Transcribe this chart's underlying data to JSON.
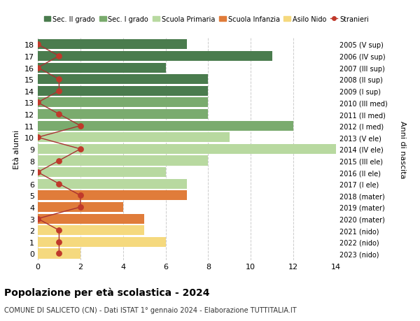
{
  "ages": [
    18,
    17,
    16,
    15,
    14,
    13,
    12,
    11,
    10,
    9,
    8,
    7,
    6,
    5,
    4,
    3,
    2,
    1,
    0
  ],
  "anni_nascita": [
    "2005 (V sup)",
    "2006 (IV sup)",
    "2007 (III sup)",
    "2008 (II sup)",
    "2009 (I sup)",
    "2010 (III med)",
    "2011 (II med)",
    "2012 (I med)",
    "2013 (V ele)",
    "2014 (IV ele)",
    "2015 (III ele)",
    "2016 (II ele)",
    "2017 (I ele)",
    "2018 (mater)",
    "2019 (mater)",
    "2020 (mater)",
    "2021 (nido)",
    "2022 (nido)",
    "2023 (nido)"
  ],
  "bar_values": [
    7,
    11,
    6,
    8,
    8,
    8,
    8,
    12,
    9,
    14,
    8,
    6,
    7,
    7,
    4,
    5,
    5,
    6,
    2
  ],
  "bar_colors": [
    "#4a7c4e",
    "#4a7c4e",
    "#4a7c4e",
    "#4a7c4e",
    "#4a7c4e",
    "#7aab6e",
    "#7aab6e",
    "#7aab6e",
    "#b8d9a0",
    "#b8d9a0",
    "#b8d9a0",
    "#b8d9a0",
    "#b8d9a0",
    "#e07c3a",
    "#e07c3a",
    "#e07c3a",
    "#f5d97e",
    "#f5d97e",
    "#f5d97e"
  ],
  "stranieri_x": [
    0,
    1,
    0,
    1,
    1,
    0,
    1,
    2,
    0,
    2,
    1,
    0,
    1,
    2,
    2,
    0,
    1,
    1,
    1
  ],
  "legend_labels": [
    "Sec. II grado",
    "Sec. I grado",
    "Scuola Primaria",
    "Scuola Infanzia",
    "Asilo Nido",
    "Stranieri"
  ],
  "legend_colors": [
    "#4a7c4e",
    "#7aab6e",
    "#b8d9a0",
    "#e07c3a",
    "#f5d97e",
    "#c0392b"
  ],
  "title_bold": "Popolazione per età scolastica - 2024",
  "subtitle": "COMUNE DI SALICETO (CN) - Dati ISTAT 1° gennaio 2024 - Elaborazione TUTTITALIA.IT",
  "ylabel_left": "Età alunni",
  "ylabel_right": "Anni di nascita",
  "xlim": [
    0,
    14
  ],
  "ylim_min": -0.55,
  "ylim_max": 18.55,
  "background_color": "#ffffff",
  "grid_color": "#cccccc",
  "stranieri_line_color": "#a83232",
  "stranieri_dot_color": "#c0392b"
}
